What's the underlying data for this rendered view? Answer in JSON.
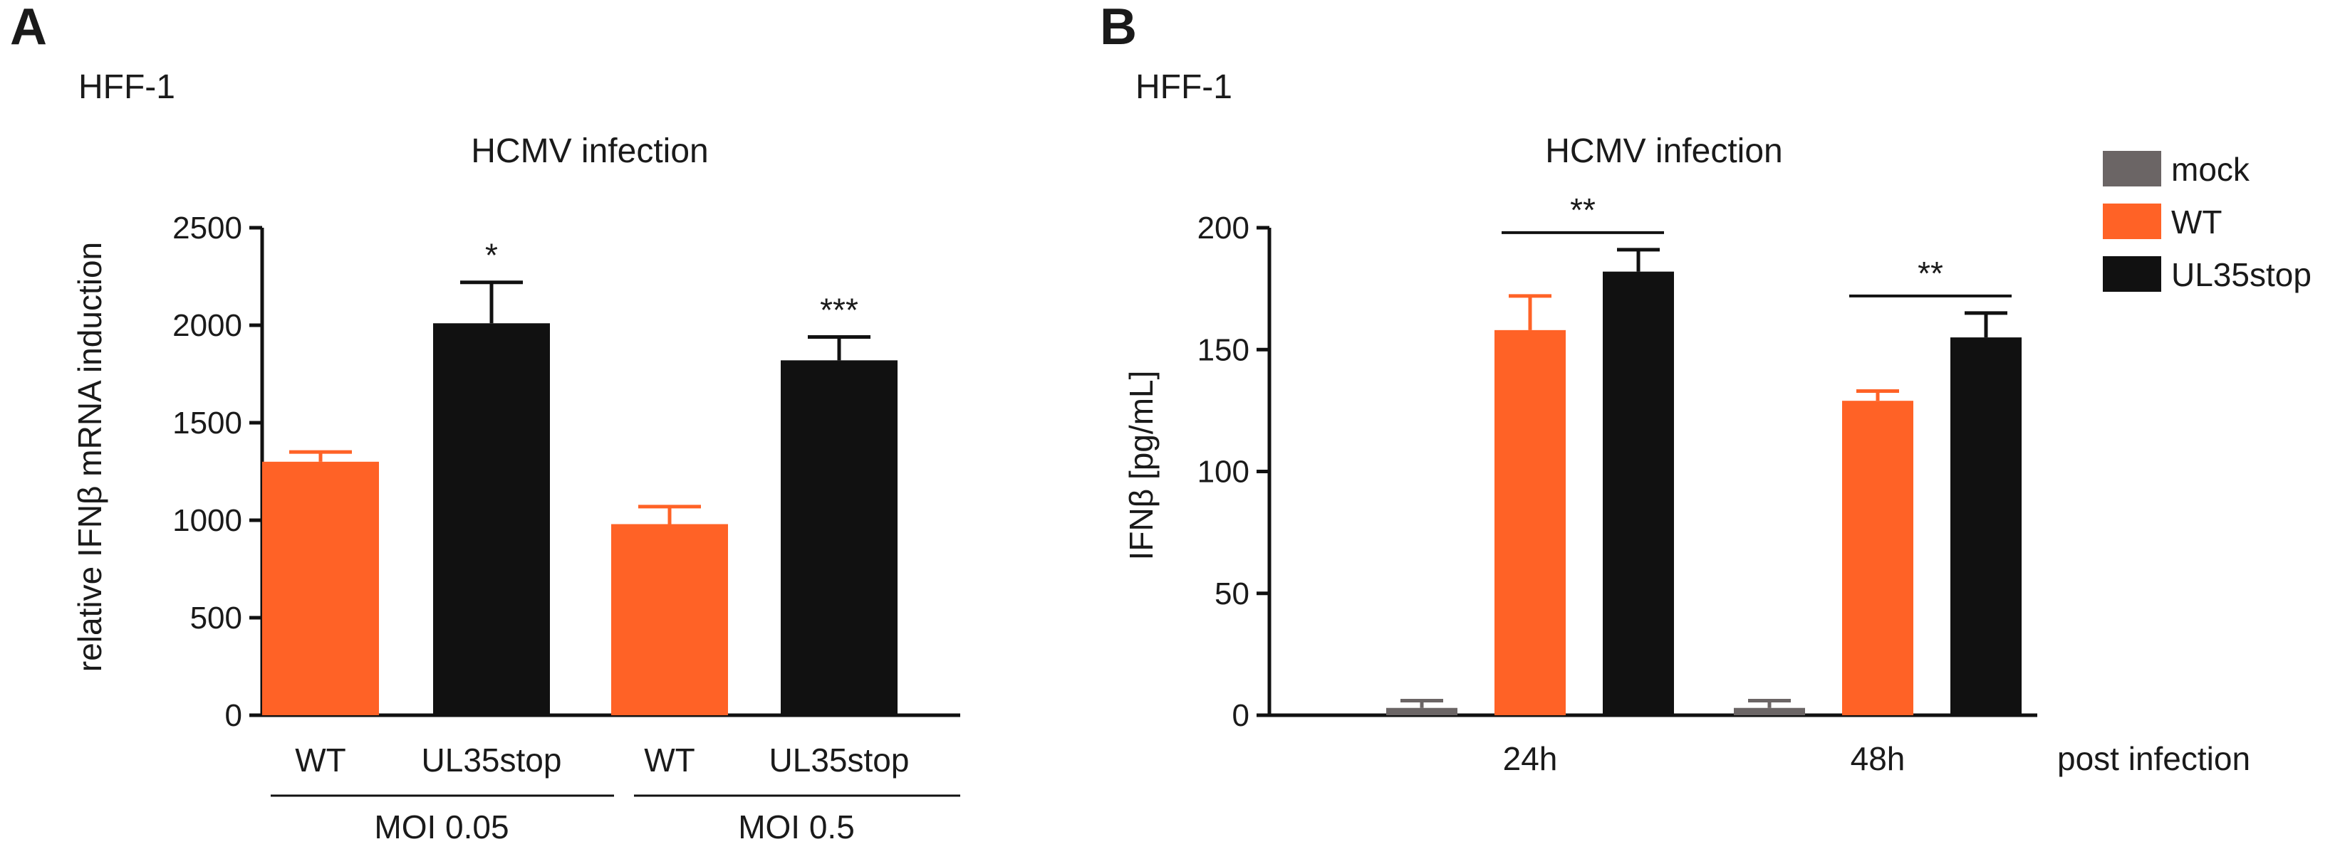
{
  "colors": {
    "mock": "#6b6565",
    "wt": "#ff6226",
    "ul35stop": "#111111",
    "line": "#111111"
  },
  "chart_data": [
    {
      "panel": "A",
      "type": "bar",
      "cell_label": "HFF-1",
      "title": "HCMV infection",
      "ylabel": "relative IFNβ mRNA induction",
      "xlabel": "",
      "ylim": [
        0,
        2500
      ],
      "yticks": [
        "0",
        "500",
        "1000",
        "1500",
        "2000",
        "2500"
      ],
      "categories": [
        "WT",
        "UL35stop",
        "WT",
        "UL35stop"
      ],
      "values": [
        1300,
        2010,
        980,
        1820
      ],
      "errors": [
        50,
        210,
        90,
        120
      ],
      "bar_series": [
        "wt",
        "ul35stop",
        "wt",
        "ul35stop"
      ],
      "significance": [
        "",
        "*",
        "",
        "***"
      ],
      "groups": [
        "MOI 0.05",
        "MOI 0.5"
      ],
      "legend": "none"
    },
    {
      "panel": "B",
      "type": "bar",
      "cell_label": "HFF-1",
      "title": "HCMV infection",
      "ylabel": "IFNβ [pg/mL]",
      "xlabel": "post infection",
      "ylim": [
        0,
        200
      ],
      "yticks": [
        "0",
        "50",
        "100",
        "150",
        "200"
      ],
      "categories": [
        "24h",
        "48h"
      ],
      "series": [
        {
          "key": "mock",
          "name": "mock",
          "values": [
            3,
            3
          ],
          "errors": [
            3,
            3
          ]
        },
        {
          "key": "wt",
          "name": "WT",
          "values": [
            158,
            129
          ],
          "errors": [
            14,
            4
          ]
        },
        {
          "key": "ul35stop",
          "name": "UL35stop",
          "values": [
            182,
            155
          ],
          "errors": [
            9,
            10
          ]
        }
      ],
      "significance": [
        "**",
        "**"
      ],
      "legend": "top-right"
    }
  ]
}
